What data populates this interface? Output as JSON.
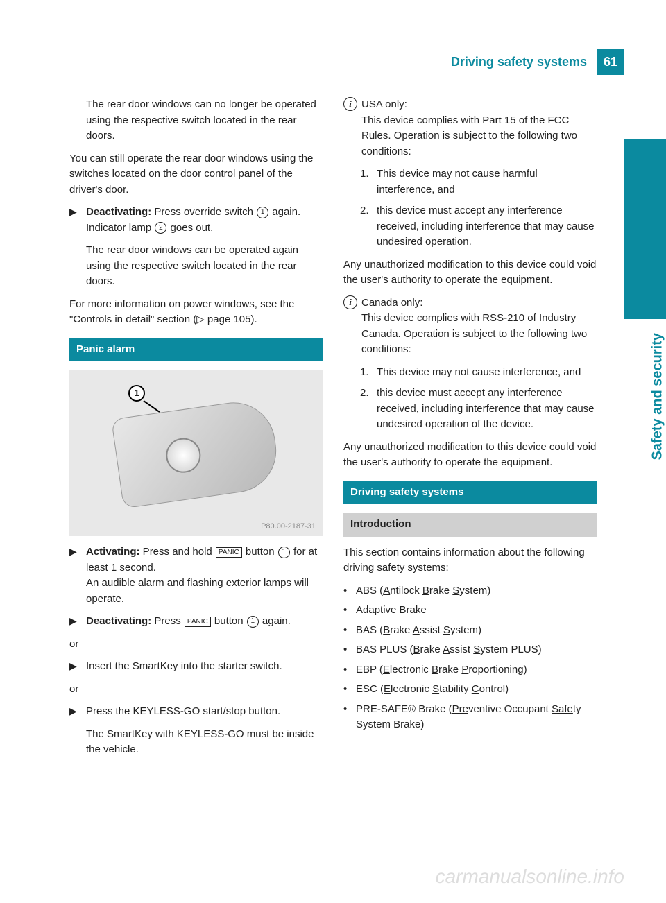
{
  "page_number": "61",
  "header_title": "Driving safety systems",
  "side_label": "Safety and security",
  "colors": {
    "accent": "#0b8a9f",
    "sub_bar": "#d0d0d0",
    "text": "#222222",
    "figure_bg": "#e8e8e8"
  },
  "figure_code": "P80.00-2187-31",
  "left": {
    "p1": "The rear door windows can no longer be operated using the respective switch located in the rear doors.",
    "p2": "You can still operate the rear door windows using the switches located on the door control panel of the driver's door.",
    "deact_label": "Deactivating:",
    "deact_text_a": " Press override switch ",
    "deact_text_b": " again.",
    "deact_sub": "Indicator lamp ",
    "deact_sub2": " goes out.",
    "p3": "The rear door windows can be operated again using the respective switch located in the rear doors.",
    "p4": "For more information on power windows, see the \"Controls in detail\" section (▷ page 105).",
    "panic_heading": "Panic alarm",
    "act_label": "Activating:",
    "act_text_a": " Press and hold ",
    "act_text_b": " button ",
    "act_text_c": " for at least 1 second.",
    "act_sub": "An audible alarm and flashing exterior lamps will operate.",
    "deact2_label": "Deactivating:",
    "deact2_text_a": " Press ",
    "deact2_text_b": " button ",
    "deact2_text_c": " again.",
    "or": "or",
    "insert": "Insert the SmartKey into the starter switch.",
    "press_go": "Press the KEYLESS-GO start/stop button.",
    "press_go_sub": "The SmartKey with KEYLESS-GO must be inside the vehicle.",
    "panic_label": "PANIC",
    "ref1": "1",
    "ref2": "2"
  },
  "right": {
    "usa_label": "USA only:",
    "usa_p1": "This device complies with Part 15 of the FCC Rules. Operation is subject to the following two conditions:",
    "usa_li1": "This device may not cause harmful interference, and",
    "usa_li2": "this device must accept any interference received, including interference that may cause undesired operation.",
    "usa_p2": "Any unauthorized modification to this device could void the user's authority to operate the equipment.",
    "can_label": "Canada only:",
    "can_p1": "This device complies with RSS-210 of Industry Canada. Operation is subject to the following two conditions:",
    "can_li1": "This device may not cause interference, and",
    "can_li2": "this device must accept any interference received, including interference that may cause undesired operation of the device.",
    "can_p2": "Any unauthorized modification to this device could void the user's authority to operate the equipment.",
    "section": "Driving safety systems",
    "intro": "Introduction",
    "intro_p": "This section contains information about the following driving safety systems:",
    "items": [
      {
        "pre": "ABS (",
        "u": "A",
        "mid": "ntilock ",
        "u2": "B",
        "mid2": "rake ",
        "u3": "S",
        "post": "ystem)"
      },
      {
        "pre": "Adaptive Brake"
      },
      {
        "pre": "BAS (",
        "u": "B",
        "mid": "rake ",
        "u2": "A",
        "mid2": "ssist ",
        "u3": "S",
        "post": "ystem)"
      },
      {
        "pre": "BAS PLUS (",
        "u": "B",
        "mid": "rake ",
        "u2": "A",
        "mid2": "ssist ",
        "u3": "S",
        "post": "ystem PLUS)"
      },
      {
        "pre": "EBP (",
        "u": "E",
        "mid": "lectronic ",
        "u2": "B",
        "mid2": "rake ",
        "u3": "P",
        "post": "roportioning)"
      },
      {
        "pre": "ESC (",
        "u": "E",
        "mid": "lectronic ",
        "u2": "S",
        "mid2": "tability ",
        "u3": "C",
        "post": "ontrol)"
      },
      {
        "pre": "PRE-SAFE® Brake (",
        "u": "Pre",
        "mid": "ventive Occupant ",
        "u2": "Safe",
        "post": "ty System Brake)"
      }
    ]
  },
  "watermark": "carmanualsonline.info"
}
